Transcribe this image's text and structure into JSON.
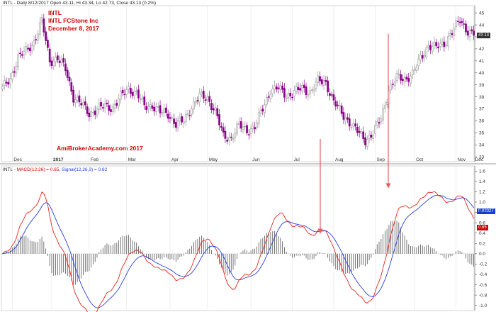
{
  "header": {
    "text": "INTL - Daily 8/12/2017 Open 43.11, Hi 43.34, Lo 42.73, Close 43.13 (0.2%)"
  },
  "annotation": {
    "ticker": "INTL",
    "company": "INTL FCStone Inc",
    "date": "December 8, 2017",
    "watermark": "AmiBrokerAcademy.com  2017"
  },
  "indicator": {
    "prefix": "INTL - ",
    "macd_label": "MACD(12,26) = 0.65",
    "signal_label": "Signal(12,26,9) = 0.82"
  },
  "badges": {
    "price": "43.13",
    "signal": "0.82027",
    "macd": "0.65"
  },
  "colors": {
    "up": "#999999",
    "down": "#8b008b",
    "macd": "#e8251e",
    "signal": "#2a3fe0",
    "arrow": "#e06060",
    "annotation": "#d40000",
    "price_badge": "#333333",
    "signal_badge": "#1a3fd4",
    "macd_badge": "#d40000"
  },
  "chart_data": [
    {
      "type": "candlestick",
      "x_labels": [
        "Dec",
        "2017",
        "Feb",
        "Mar",
        "Apr",
        "May",
        "Jun",
        "Jul",
        "Aug",
        "Sep",
        "Oct",
        "Nov",
        "Dec"
      ],
      "ylim": [
        32.6,
        45.6
      ],
      "y_ticks": [
        33,
        34,
        35,
        36,
        37,
        38,
        39,
        40,
        41,
        42,
        43,
        44,
        45
      ],
      "last_close": 43.13,
      "anchors": [
        [
          0,
          38.7
        ],
        [
          4,
          39.5
        ],
        [
          8,
          41.3
        ],
        [
          12,
          41.8
        ],
        [
          16,
          42.6
        ],
        [
          20,
          44.3
        ],
        [
          24,
          41.0
        ],
        [
          28,
          41.2
        ],
        [
          32,
          40.3
        ],
        [
          36,
          38.0
        ],
        [
          40,
          37.4
        ],
        [
          44,
          36.6
        ],
        [
          48,
          37.0
        ],
        [
          52,
          37.2
        ],
        [
          56,
          37.1
        ],
        [
          60,
          38.0
        ],
        [
          64,
          38.7
        ],
        [
          68,
          38.3
        ],
        [
          72,
          37.2
        ],
        [
          76,
          37.3
        ],
        [
          80,
          36.7
        ],
        [
          84,
          36.6
        ],
        [
          88,
          35.7
        ],
        [
          92,
          36.0
        ],
        [
          96,
          37.2
        ],
        [
          100,
          38.0
        ],
        [
          104,
          37.9
        ],
        [
          108,
          36.8
        ],
        [
          112,
          34.7
        ],
        [
          116,
          34.6
        ],
        [
          120,
          35.6
        ],
        [
          124,
          35.2
        ],
        [
          128,
          35.5
        ],
        [
          132,
          37.0
        ],
        [
          136,
          38.6
        ],
        [
          140,
          38.7
        ],
        [
          144,
          38.1
        ],
        [
          148,
          38.4
        ],
        [
          152,
          38.7
        ],
        [
          156,
          38.4
        ],
        [
          160,
          39.3
        ],
        [
          164,
          39.2
        ],
        [
          168,
          37.6
        ],
        [
          172,
          36.6
        ],
        [
          176,
          35.9
        ],
        [
          180,
          35.1
        ],
        [
          184,
          34.4
        ],
        [
          188,
          35.0
        ],
        [
          192,
          36.2
        ],
        [
          196,
          38.6
        ],
        [
          200,
          39.6
        ],
        [
          204,
          39.5
        ],
        [
          208,
          39.9
        ],
        [
          212,
          41.2
        ],
        [
          216,
          42.3
        ],
        [
          220,
          42.1
        ],
        [
          224,
          42.5
        ],
        [
          228,
          43.4
        ],
        [
          232,
          44.4
        ],
        [
          236,
          43.5
        ],
        [
          239,
          43.13
        ]
      ]
    },
    {
      "type": "macd",
      "macd_label": "MACD(12,26)",
      "signal_label": "Signal(12,26,9)",
      "macd_value": 0.65,
      "signal_value": 0.82,
      "ylim": [
        -1.1,
        1.7
      ],
      "y_ticks": [
        -1.0,
        -0.8,
        -0.6,
        -0.4,
        -0.2,
        0.0,
        0.2,
        0.4,
        0.6,
        0.8,
        1.0,
        1.2,
        1.4,
        1.6
      ]
    }
  ]
}
